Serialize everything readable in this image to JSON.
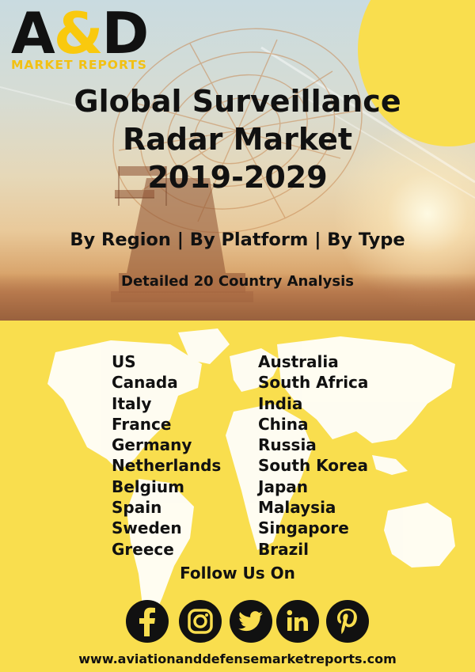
{
  "logo": {
    "main_left": "A",
    "amp": "&",
    "main_right": "D",
    "sub": "MARKET REPORTS"
  },
  "title": {
    "line1": "Global Surveillance",
    "line2": "Radar Market",
    "line3": "2019-2029"
  },
  "subtitle": "By Region | By Platform | By Type",
  "analysis": "Detailed 20 Country Analysis",
  "countries": {
    "left": [
      "US",
      "Canada",
      "Italy",
      "France",
      "Germany",
      "Netherlands",
      "Belgium",
      "Spain",
      "Sweden",
      "Greece"
    ],
    "right": [
      "Australia",
      "South Africa",
      "India",
      "China",
      "Russia",
      "South Korea",
      "Japan",
      "Malaysia",
      "Singapore",
      "Brazil"
    ]
  },
  "follow": "Follow Us On",
  "social_icons": [
    "facebook-icon",
    "instagram-icon",
    "twitter-icon",
    "linkedin-icon",
    "pinterest-icon"
  ],
  "website": "www.aviationanddefensemarketreports.com",
  "colors": {
    "yellow": "#f9de4e",
    "text": "#111111",
    "logo_accent": "#f9c90e"
  }
}
